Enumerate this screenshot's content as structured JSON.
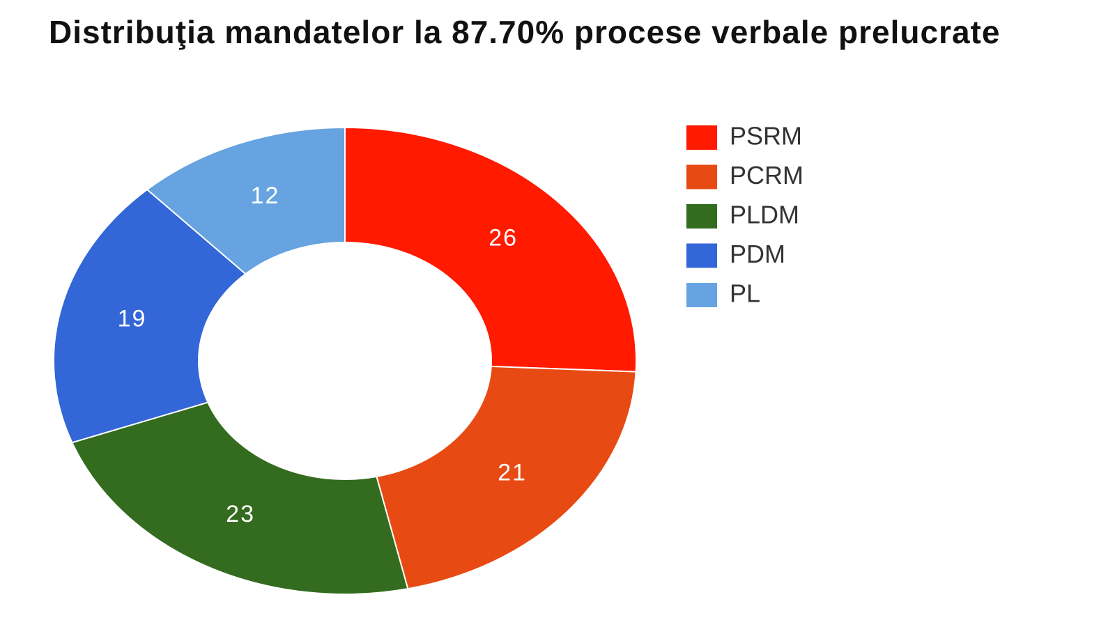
{
  "chart_data": {
    "type": "donut",
    "title": "Distribuţia mandatelor la 87.70% procese verbale prelucrate",
    "categories": [
      "PSRM",
      "PCRM",
      "PLDM",
      "PDM",
      "PL"
    ],
    "values": [
      26,
      21,
      23,
      19,
      12
    ],
    "colors": [
      "#ff1a00",
      "#e84a14",
      "#336b1f",
      "#3366d6",
      "#66a3e0"
    ],
    "legend": "right"
  }
}
